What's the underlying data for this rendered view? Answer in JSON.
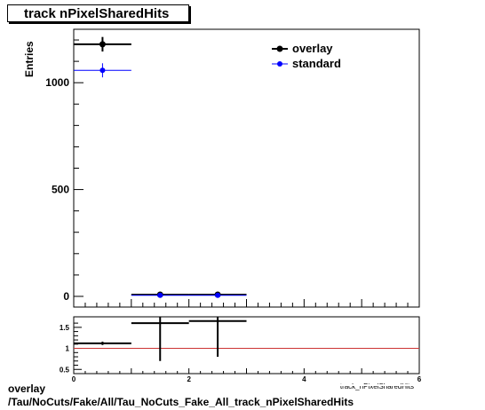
{
  "title": "track nPixelSharedHits",
  "footer": {
    "line1": "overlay",
    "line2": "/Tau/NoCuts/Fake/All/Tau_NoCuts_Fake_All_track_nPixelSharedHits"
  },
  "chart_data": [
    {
      "type": "scatter",
      "panel": "main",
      "ylabel": "Entries",
      "xlim": [
        0,
        6
      ],
      "ylim": [
        -50,
        1250
      ],
      "y_tick_labels": [
        "0",
        "500",
        "1000"
      ],
      "legend_placement": "top-right",
      "series": [
        {
          "name": "overlay",
          "color": "#000000",
          "points": [
            {
              "x": 0.5,
              "y": 1180,
              "xerr": 0.5,
              "yerr": 34
            },
            {
              "x": 1.5,
              "y": 8,
              "xerr": 0.5,
              "yerr": 3
            },
            {
              "x": 2.5,
              "y": 8,
              "xerr": 0.5,
              "yerr": 3
            }
          ]
        },
        {
          "name": "standard",
          "color": "#0000ff",
          "points": [
            {
              "x": 0.5,
              "y": 1058,
              "xerr": 0.5,
              "yerr": 33
            },
            {
              "x": 1.5,
              "y": 5,
              "xerr": 0.5,
              "yerr": 2
            },
            {
              "x": 2.5,
              "y": 5,
              "xerr": 0.5,
              "yerr": 2
            }
          ]
        }
      ]
    },
    {
      "type": "scatter",
      "panel": "ratio",
      "xlim": [
        0,
        6
      ],
      "ylim": [
        0.4,
        1.75
      ],
      "x_tick_labels": [
        "0",
        "2",
        "4",
        "6"
      ],
      "y_tick_labels": [
        "0.5",
        "1",
        "1.5"
      ],
      "reference_line": {
        "y": 1,
        "color": "#cc3333"
      },
      "xlabel": "track_nPixelSharedHits",
      "series": [
        {
          "color": "#000000",
          "points": [
            {
              "x": 0.5,
              "y": 1.12,
              "xerr": 0.5,
              "yerr": 0.04
            },
            {
              "x": 1.5,
              "y": 1.6,
              "xerr": 0.5,
              "yerr": 0.9
            },
            {
              "x": 2.5,
              "y": 1.65,
              "xerr": 0.5,
              "yerr": 0.85
            }
          ]
        }
      ]
    }
  ]
}
